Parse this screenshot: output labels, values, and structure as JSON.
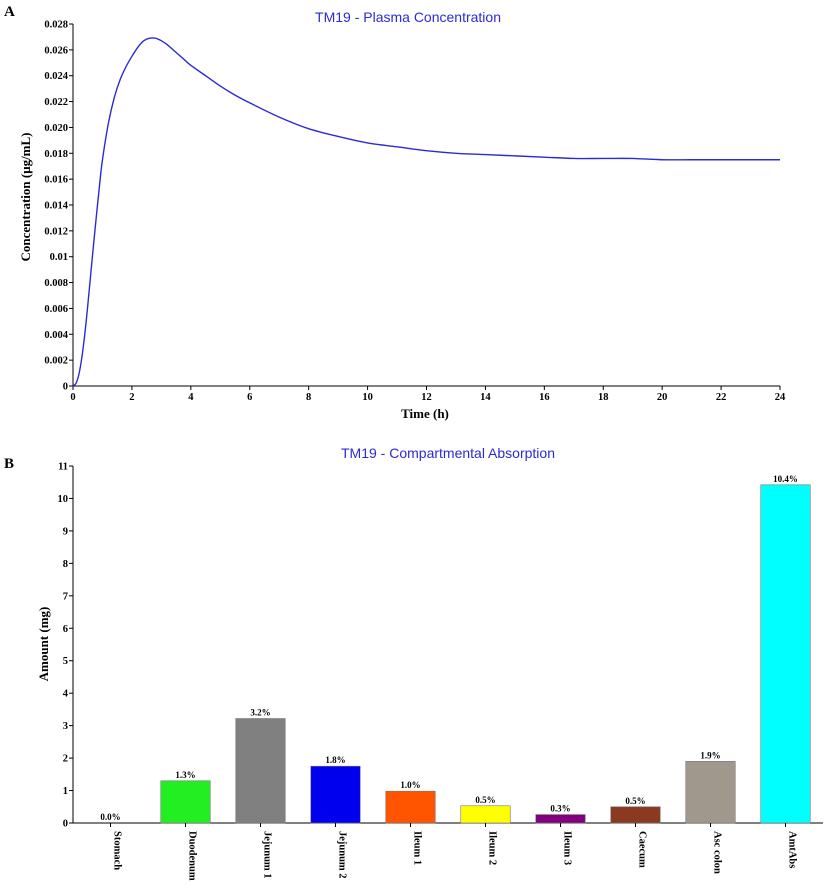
{
  "panels": {
    "a": "A",
    "b": "B"
  },
  "chart_data": [
    {
      "type": "line",
      "title": "TM19 - Plasma Concentration",
      "xlabel": "Time (h)",
      "ylabel": "Concentration (μg/mL)",
      "xlim": [
        0,
        24
      ],
      "ylim": [
        0,
        0.028
      ],
      "x_ticks": [
        "0",
        "2",
        "4",
        "6",
        "8",
        "10",
        "12",
        "14",
        "16",
        "18",
        "20",
        "22",
        "24"
      ],
      "y_ticks": [
        "0",
        "0.002",
        "0.004",
        "0.006",
        "0.008",
        "0.01",
        "0.012",
        "0.014",
        "0.016",
        "0.018",
        "0.020",
        "0.022",
        "0.024",
        "0.026",
        "0.028"
      ],
      "grid": false,
      "color": "#2b2bd6",
      "series": [
        {
          "x": [
            0,
            0.1,
            0.2,
            0.3,
            0.4,
            0.5,
            0.6,
            0.7,
            0.8,
            0.9,
            1.0,
            1.2,
            1.4,
            1.6,
            1.8,
            2.0,
            2.2,
            2.4,
            2.6,
            2.8,
            3.0,
            3.2,
            3.4,
            3.6,
            3.8,
            4.0,
            4.5,
            5.0,
            5.5,
            6.0,
            7.0,
            8.0,
            9.0,
            10.0,
            11.0,
            12.0,
            13.0,
            14.0,
            15.0,
            16.0,
            17.0,
            18.0,
            19.0,
            20.0,
            21.0,
            22.0,
            23.0,
            24.0
          ],
          "y": [
            0,
            0.0002,
            0.0009,
            0.0022,
            0.004,
            0.0062,
            0.0086,
            0.011,
            0.0133,
            0.0155,
            0.0175,
            0.0203,
            0.0223,
            0.0237,
            0.0247,
            0.0255,
            0.0262,
            0.0267,
            0.0269,
            0.0269,
            0.0267,
            0.0264,
            0.026,
            0.0256,
            0.0252,
            0.0248,
            0.024,
            0.0232,
            0.0225,
            0.0219,
            0.0208,
            0.0199,
            0.0193,
            0.0188,
            0.0185,
            0.0182,
            0.018,
            0.0179,
            0.0178,
            0.0177,
            0.0176,
            0.0176,
            0.0176,
            0.0175,
            0.0175,
            0.0175,
            0.0175,
            0.0175
          ]
        }
      ]
    },
    {
      "type": "bar",
      "title": "TM19 - Compartmental Absorption",
      "xlabel": "",
      "ylabel": "Amount (mg)",
      "ylim": [
        0,
        11
      ],
      "y_ticks": [
        "0",
        "1",
        "2",
        "3",
        "4",
        "5",
        "6",
        "7",
        "8",
        "9",
        "10",
        "11"
      ],
      "grid": false,
      "categories": [
        "Stomach",
        "Duodenum",
        "Jejunum 1",
        "Jejunum 2",
        "Ileum 1",
        "Ileum 2",
        "Ileum 3",
        "Caecum",
        "Asc colon",
        "AmtAbs"
      ],
      "values": [
        0.0,
        1.3,
        3.22,
        1.75,
        0.98,
        0.53,
        0.26,
        0.5,
        1.9,
        10.42
      ],
      "data_labels": [
        "0.0%",
        "1.3%",
        "3.2%",
        "1.8%",
        "1.0%",
        "0.5%",
        "0.3%",
        "0.5%",
        "1.9%",
        "10.4%"
      ],
      "colors": [
        "#ffffff",
        "#22ee22",
        "#808080",
        "#0000ee",
        "#ff5500",
        "#ffff00",
        "#800080",
        "#8b3a20",
        "#a0988c",
        "#00ffff"
      ]
    }
  ]
}
